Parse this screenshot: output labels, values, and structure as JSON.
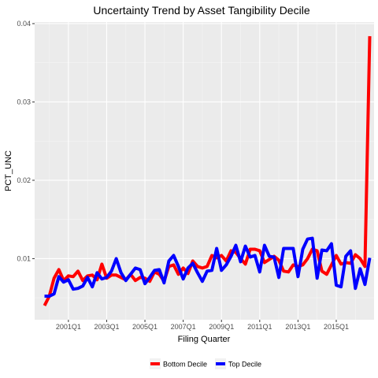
{
  "chart_data": {
    "type": "line",
    "title": "Uncertainty Trend by Asset Tangibility Decile",
    "xlabel": "Filing Quarter",
    "ylabel": "PCT_UNC",
    "ylim": [
      0.0022,
      0.0402
    ],
    "yticks": [
      0.01,
      0.02,
      0.03,
      0.04
    ],
    "ytick_labels": [
      "0.01",
      "0.02",
      "0.03",
      "0.04"
    ],
    "xticks": [
      "2001Q1",
      "2003Q1",
      "2005Q1",
      "2007Q1",
      "2009Q1",
      "2011Q1",
      "2013Q1",
      "2015Q1"
    ],
    "grid": true,
    "legend_position": "bottom",
    "x": [
      "1999Q4",
      "2000Q1",
      "2000Q2",
      "2000Q3",
      "2000Q4",
      "2001Q1",
      "2001Q2",
      "2001Q3",
      "2001Q4",
      "2002Q1",
      "2002Q2",
      "2002Q3",
      "2002Q4",
      "2003Q1",
      "2003Q2",
      "2003Q3",
      "2003Q4",
      "2004Q1",
      "2004Q2",
      "2004Q3",
      "2004Q4",
      "2005Q1",
      "2005Q2",
      "2005Q3",
      "2005Q4",
      "2006Q1",
      "2006Q2",
      "2006Q3",
      "2006Q4",
      "2007Q1",
      "2007Q2",
      "2007Q3",
      "2007Q4",
      "2008Q1",
      "2008Q2",
      "2008Q3",
      "2008Q4",
      "2009Q1",
      "2009Q2",
      "2009Q3",
      "2009Q4",
      "2010Q1",
      "2010Q2",
      "2010Q3",
      "2010Q4",
      "2011Q1",
      "2011Q2",
      "2011Q3",
      "2011Q4",
      "2012Q1",
      "2012Q2",
      "2012Q3",
      "2012Q4",
      "2013Q1",
      "2013Q2",
      "2013Q3",
      "2013Q4",
      "2014Q1",
      "2014Q2",
      "2014Q3",
      "2014Q4",
      "2015Q1",
      "2015Q2",
      "2015Q3",
      "2015Q4",
      "2016Q1",
      "2016Q2",
      "2016Q3",
      "2016Q4"
    ],
    "series": [
      {
        "name": "Bottom Decile",
        "color": "#ff0000",
        "values": [
          0.004,
          0.0052,
          0.0075,
          0.0086,
          0.0072,
          0.0078,
          0.0077,
          0.0084,
          0.0072,
          0.0078,
          0.0079,
          0.0073,
          0.0093,
          0.0075,
          0.0079,
          0.0079,
          0.0076,
          0.0073,
          0.008,
          0.0072,
          0.0076,
          0.0075,
          0.0071,
          0.0083,
          0.008,
          0.0071,
          0.009,
          0.0092,
          0.008,
          0.0088,
          0.0081,
          0.0097,
          0.009,
          0.0088,
          0.009,
          0.0104,
          0.0101,
          0.0104,
          0.0097,
          0.011,
          0.0108,
          0.01,
          0.0093,
          0.0112,
          0.0112,
          0.011,
          0.0095,
          0.0099,
          0.0103,
          0.0098,
          0.0084,
          0.0083,
          0.0092,
          0.009,
          0.0092,
          0.01,
          0.0112,
          0.011,
          0.0084,
          0.008,
          0.0092,
          0.0104,
          0.0093,
          0.0095,
          0.0094,
          0.0105,
          0.01,
          0.009,
          0.0384
        ]
      },
      {
        "name": "Top Decile",
        "color": "#0000ff",
        "values": [
          0.0052,
          0.0052,
          0.0055,
          0.0077,
          0.007,
          0.0073,
          0.0061,
          0.0062,
          0.0065,
          0.0076,
          0.0064,
          0.0082,
          0.0074,
          0.0076,
          0.0084,
          0.01,
          0.0082,
          0.0072,
          0.008,
          0.0088,
          0.0086,
          0.0068,
          0.0076,
          0.0085,
          0.0086,
          0.0069,
          0.0097,
          0.0104,
          0.009,
          0.0074,
          0.0088,
          0.0094,
          0.0082,
          0.0071,
          0.0084,
          0.0085,
          0.0113,
          0.0085,
          0.0092,
          0.0103,
          0.0117,
          0.0096,
          0.0116,
          0.0102,
          0.0104,
          0.0083,
          0.0117,
          0.0103,
          0.0102,
          0.0076,
          0.0113,
          0.0113,
          0.0113,
          0.0077,
          0.0112,
          0.0125,
          0.0126,
          0.0075,
          0.0111,
          0.011,
          0.0119,
          0.0066,
          0.0064,
          0.0103,
          0.011,
          0.0062,
          0.0087,
          0.0067,
          0.0101
        ]
      }
    ]
  }
}
